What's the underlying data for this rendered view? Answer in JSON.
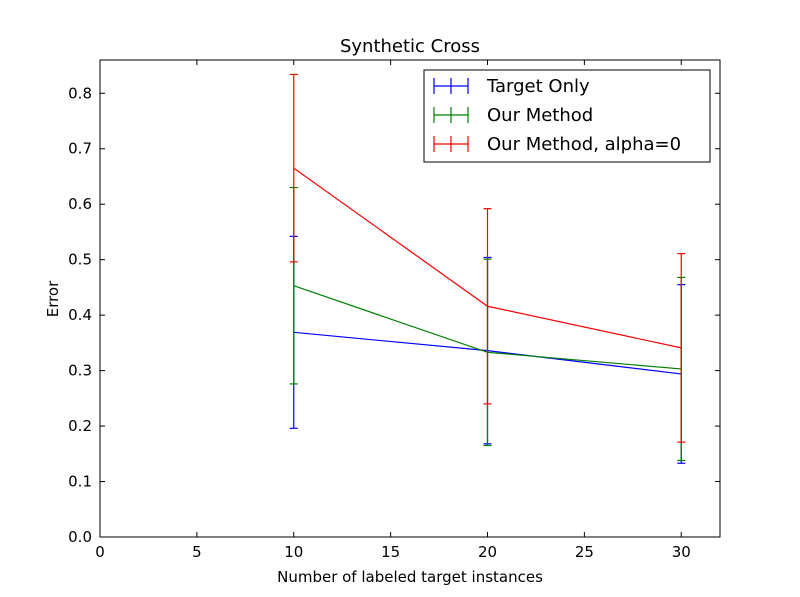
{
  "chart_data": {
    "type": "line",
    "title": "Synthetic Cross",
    "xlabel": "Number of labeled target instances",
    "ylabel": "Error",
    "xlim": [
      0,
      32
    ],
    "ylim": [
      0,
      0.86
    ],
    "xticks": [
      0,
      5,
      10,
      15,
      20,
      25,
      30
    ],
    "yticks": [
      0.0,
      0.1,
      0.2,
      0.3,
      0.4,
      0.5,
      0.6,
      0.7,
      0.8
    ],
    "grid": false,
    "legend_position": "top-right",
    "x": [
      10,
      20,
      30
    ],
    "series": [
      {
        "name": "Target Only",
        "color": "#0000ff",
        "values": [
          0.369,
          0.336,
          0.294
        ],
        "errors": [
          0.173,
          0.168,
          0.161
        ]
      },
      {
        "name": "Our Method",
        "color": "#008000",
        "values": [
          0.453,
          0.333,
          0.303
        ],
        "errors": [
          0.177,
          0.168,
          0.165
        ]
      },
      {
        "name": "Our Method, alpha=0",
        "color": "#ff0000",
        "values": [
          0.665,
          0.416,
          0.341
        ],
        "errors": [
          0.169,
          0.176,
          0.17
        ]
      }
    ]
  }
}
